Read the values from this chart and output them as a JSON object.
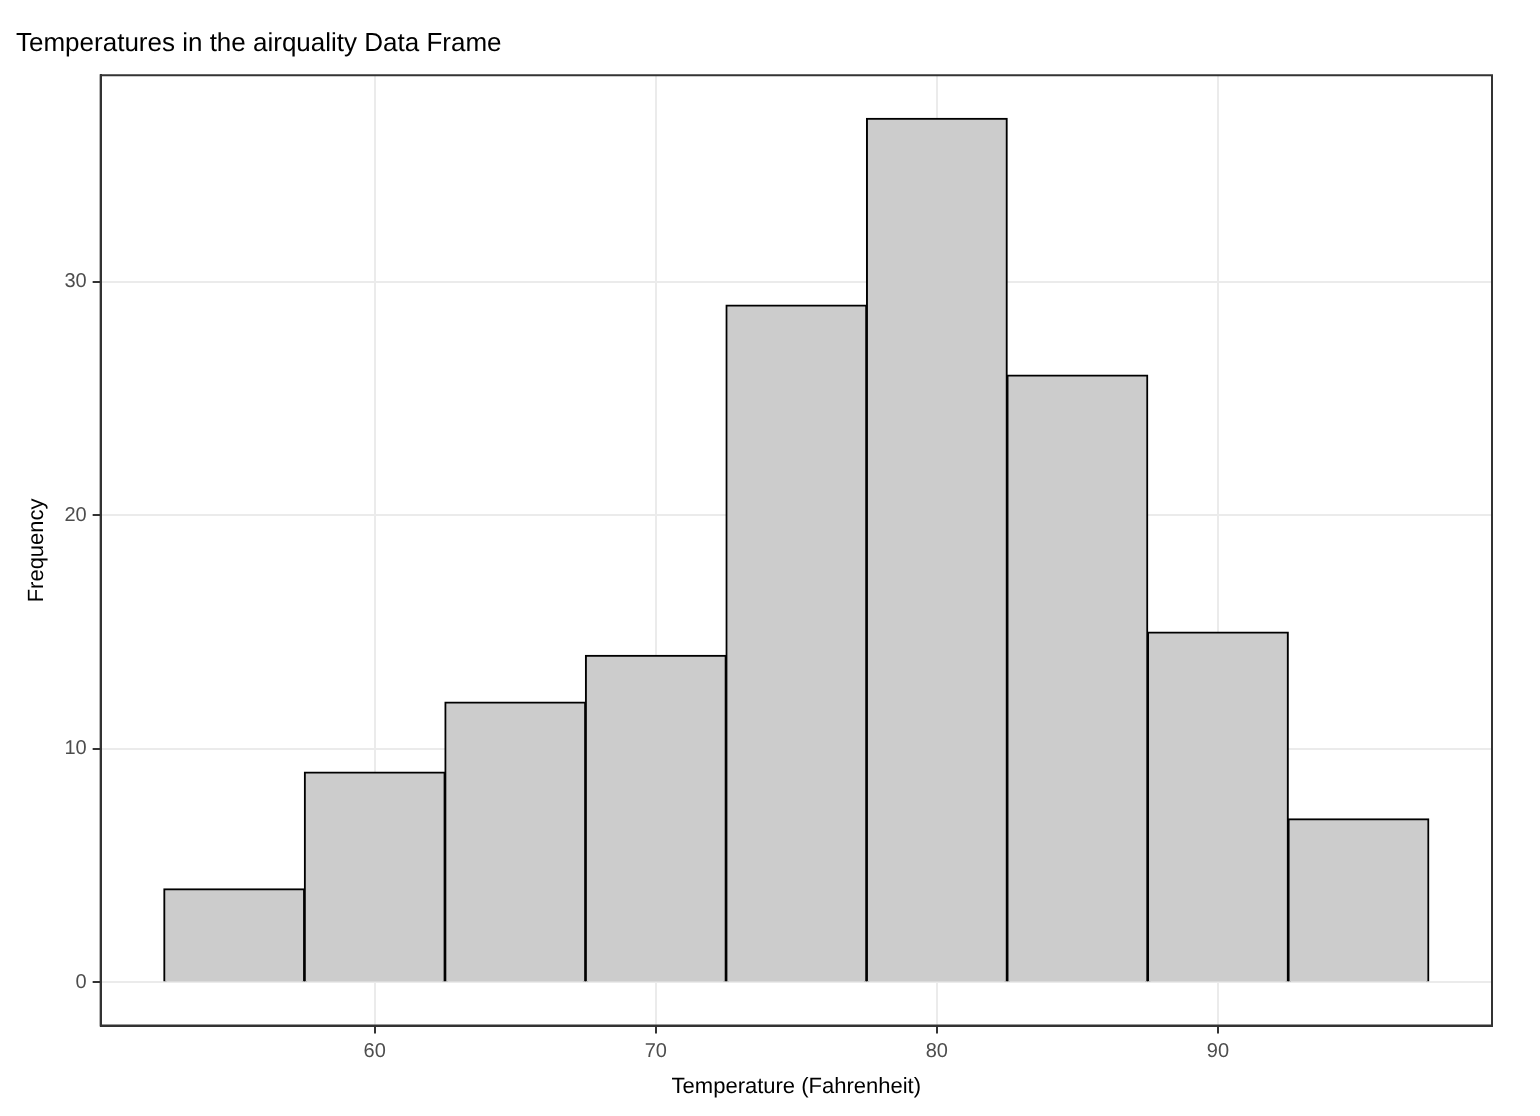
{
  "chart_data": {
    "type": "histogram",
    "title": "Temperatures in the airquality Data Frame",
    "xlabel": "Temperature (Fahrenheit)",
    "ylabel": "Frequency",
    "bins": [
      52.5,
      57.5,
      62.5,
      67.5,
      72.5,
      77.5,
      82.5,
      87.5,
      92.5,
      97.5
    ],
    "values": [
      4,
      9,
      12,
      14,
      29,
      37,
      26,
      15,
      7
    ],
    "color": "#cccccc",
    "xlim": [
      50.25,
      99.75
    ],
    "xticks": [
      60,
      70,
      80,
      90
    ],
    "ylim": [
      -1.85,
      38.85
    ],
    "yticks": [
      0,
      10,
      20,
      30
    ],
    "grid": true
  }
}
